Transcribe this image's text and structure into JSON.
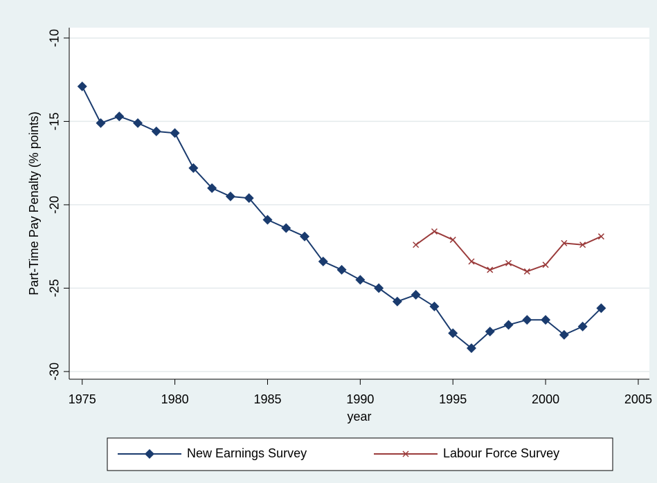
{
  "chart_data": {
    "type": "line",
    "y_label": "Part-Time Pay Penalty (% points)",
    "x_label": "year",
    "x": [
      1975,
      1976,
      1977,
      1978,
      1979,
      1980,
      1981,
      1982,
      1983,
      1984,
      1985,
      1986,
      1987,
      1988,
      1989,
      1990,
      1991,
      1992,
      1993,
      1994,
      1995,
      1996,
      1997,
      1998,
      1999,
      2000,
      2001,
      2002,
      2003
    ],
    "series": [
      {
        "name": "New Earnings Survey",
        "color": "#1a3b6e",
        "marker": "diamond",
        "values": [
          -12.9,
          -15.1,
          -14.7,
          -15.1,
          -15.6,
          -15.7,
          -17.8,
          -19.0,
          -19.5,
          -19.6,
          -20.9,
          -21.4,
          -21.9,
          -23.4,
          -23.9,
          -24.5,
          -25.0,
          -25.8,
          -25.4,
          -26.1,
          -27.7,
          -28.6,
          -27.6,
          -27.2,
          -26.9,
          -26.9,
          -27.8,
          -27.3,
          -26.2
        ]
      },
      {
        "name": "Labour Force Survey",
        "color": "#9a3a3a",
        "marker": "x",
        "values": [
          null,
          null,
          null,
          null,
          null,
          null,
          null,
          null,
          null,
          null,
          null,
          null,
          null,
          null,
          null,
          null,
          null,
          null,
          -22.4,
          -21.6,
          -22.1,
          -23.4,
          -23.9,
          -23.5,
          -24.0,
          -23.6,
          -22.3,
          -22.4,
          -21.9
        ]
      }
    ],
    "xlim": [
      1974.3,
      2005.6
    ],
    "xticks": [
      1975,
      1980,
      1985,
      1990,
      1995,
      2000,
      2005
    ],
    "ylim": [
      -30.46,
      -9.38
    ],
    "yticks": [
      -30,
      -25,
      -20,
      -15,
      -10
    ],
    "grid": true
  }
}
